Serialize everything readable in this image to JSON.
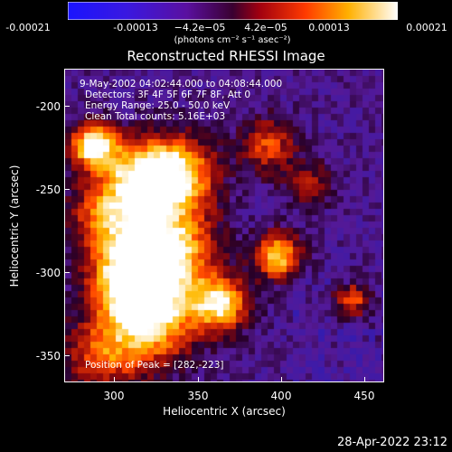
{
  "colorbar": {
    "ticks": [
      "-0.00021",
      "-0.00013",
      "−4.2e−05",
      "4.2e−05",
      "0.00013",
      "0.00021"
    ],
    "units": "(photons cm⁻² s⁻¹ asec⁻²)"
  },
  "plot": {
    "title": "Reconstructed RHESSI Image",
    "time_range": "9-May-2002 04:02:44.000 to 04:08:44.000",
    "detectors": "Detectors: 3F 4F 5F 6F 7F 8F, Att 0",
    "energy": "Energy Range: 25.0 - 50.0 keV",
    "clean": "Clean    Total counts: 5.16E+03",
    "peak": "Position of Peak = [282,-223]",
    "xlabel": "Heliocentric X (arcsec)",
    "ylabel": "Heliocentric Y (arcsec)",
    "xticks": [
      "300",
      "350",
      "400",
      "450"
    ],
    "yticks": [
      "-200",
      "-250",
      "-300",
      "-350"
    ]
  },
  "timestamp": "28-Apr-2022 23:12",
  "colors": {
    "background": "#000000",
    "text": "#ffffff",
    "colortable": "RHESSI blue-white-linear"
  }
}
